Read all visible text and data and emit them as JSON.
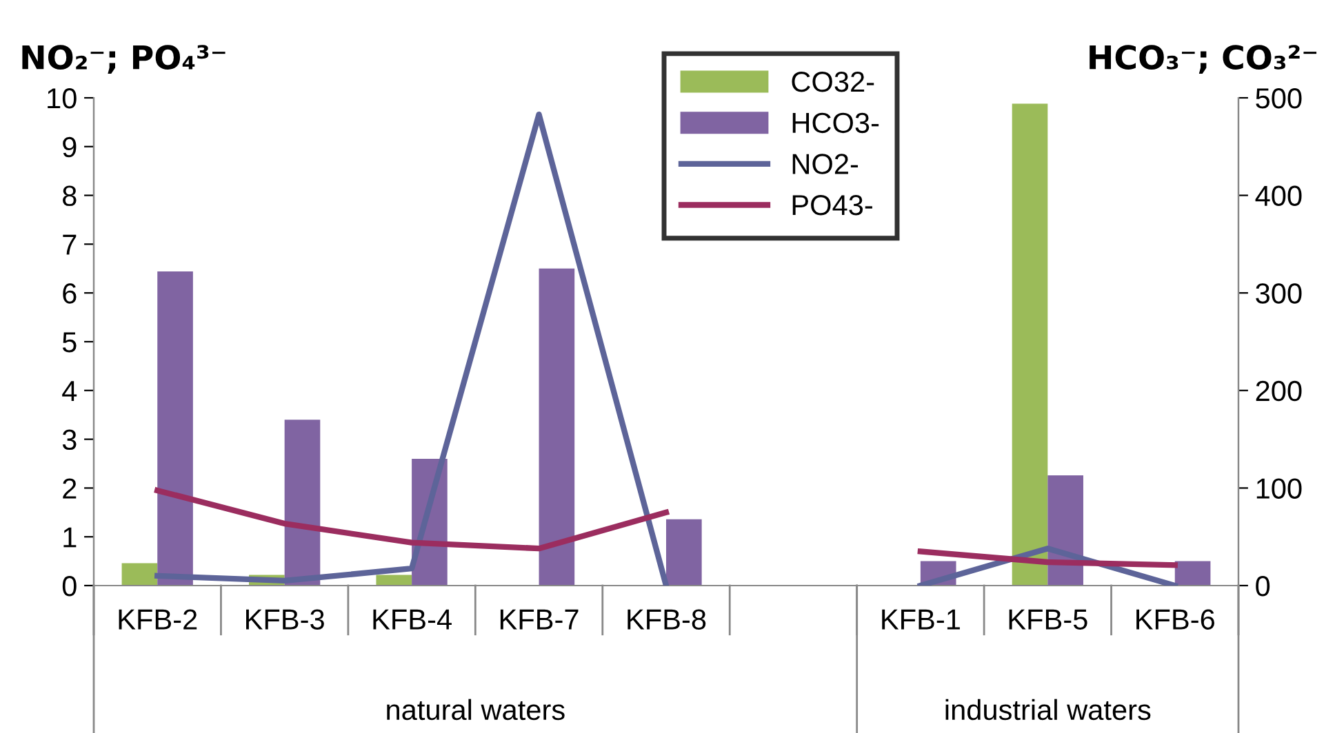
{
  "chart_data": {
    "type": "bar",
    "categories": [
      "KFB-2",
      "KFB-3",
      "KFB-4",
      "KFB-7",
      "KFB-8",
      null,
      "KFB-1",
      "KFB-5",
      "KFB-6"
    ],
    "series": [
      {
        "name": "CO32-",
        "color": "#9bbb59",
        "axis": "y2",
        "values": [
          23,
          11,
          11,
          0,
          0,
          null,
          0,
          494,
          0
        ]
      },
      {
        "name": "HCO3-",
        "color": "#8064a2",
        "axis": "y2",
        "values": [
          322,
          170,
          130,
          325,
          68,
          null,
          25,
          113,
          25
        ]
      },
      {
        "name": "NO2-",
        "type": "line",
        "color": "#5d6499",
        "values": [
          0.2,
          0.1,
          0.35,
          9.66,
          0,
          null,
          0,
          0.76,
          0
        ]
      },
      {
        "name": "PO43-",
        "type": "line",
        "color": "#9b2d5f",
        "values": [
          1.95,
          1.27,
          0.88,
          0.76,
          1.5,
          null,
          0.7,
          0.48,
          0.42
        ]
      }
    ],
    "ylabel": "NO₂⁻; PO₄³⁻",
    "y2label": "HCO₃⁻; CO₃²⁻",
    "ylim": [
      0,
      10
    ],
    "yticks": [
      0,
      1,
      2,
      3,
      4,
      5,
      6,
      7,
      8,
      9,
      10
    ],
    "y2lim": [
      0,
      500
    ],
    "y2ticks": [
      0,
      100,
      200,
      300,
      400,
      500
    ],
    "annotations": [
      "natural waters",
      "industrial waters"
    ],
    "legend": "top",
    "grid": false,
    "marker": "none",
    "line_style": "solid"
  }
}
